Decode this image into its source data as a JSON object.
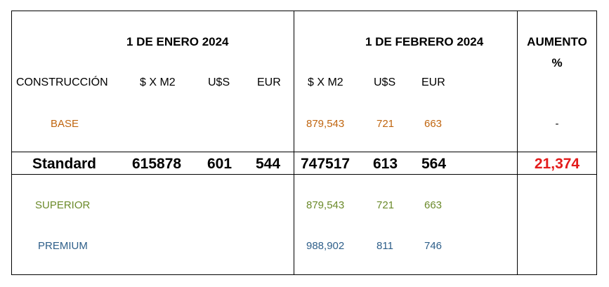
{
  "headers": {
    "period1": "1 DE ENERO 2024",
    "period2": "1 DE FEBRERO 2024",
    "increase_line1": "AUMENTO",
    "increase_line2": "%"
  },
  "columns": {
    "construction": "CONSTRUCCIÓN",
    "price_m2_1": "$ X M2",
    "usd_1": "U$S",
    "eur_1": "EUR",
    "price_m2_2": "$ X M2",
    "usd_2": "U$S",
    "eur_2": "EUR"
  },
  "rows": {
    "base": {
      "name": "BASE",
      "price_m2_2": "879,543",
      "usd_2": "721",
      "eur_2": "663",
      "increase": "-",
      "color": "#c0650f"
    },
    "standard": {
      "name": "Standard",
      "price_m2_1": "615878",
      "usd_1": "601",
      "eur_1": "544",
      "price_m2_2": "747517",
      "usd_2": "613",
      "eur_2": "564",
      "increase": "21,374",
      "increase_color": "#e31b1b"
    },
    "superior": {
      "name": "SUPERIOR",
      "price_m2_2": "879,543",
      "usd_2": "721",
      "eur_2": "663",
      "color": "#6b8a2a"
    },
    "premium": {
      "name": "PREMIUM",
      "price_m2_2": "988,902",
      "usd_2": "811",
      "eur_2": "746",
      "color": "#2e5f8a"
    }
  }
}
